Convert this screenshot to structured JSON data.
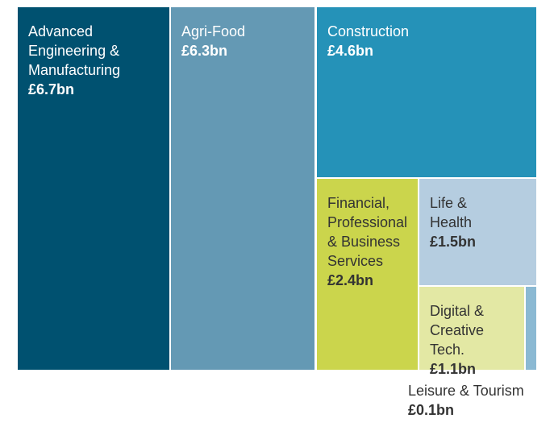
{
  "chart_data": {
    "type": "treemap",
    "title": "",
    "units": "£bn",
    "items": [
      {
        "label": "Advanced\nEngineering &\nManufacturing",
        "value": 6.7,
        "value_text": "£6.7bn",
        "color": "#005170",
        "text_color": "#ffffff"
      },
      {
        "label": "Agri-Food",
        "value": 6.3,
        "value_text": "£6.3bn",
        "color": "#6499b4",
        "text_color": "#ffffff"
      },
      {
        "label": "Construction",
        "value": 4.6,
        "value_text": "£4.6bn",
        "color": "#2592b8",
        "text_color": "#ffffff"
      },
      {
        "label": "Financial,\nProfessional\n& Business\nServices",
        "value": 2.4,
        "value_text": "£2.4bn",
        "color": "#cbd54c",
        "text_color": "#333333"
      },
      {
        "label": "Life &\nHealth",
        "value": 1.5,
        "value_text": "£1.5bn",
        "color": "#b5cde0",
        "text_color": "#333333"
      },
      {
        "label": "Digital &\nCreative\nTech.",
        "value": 1.1,
        "value_text": "£1.1bn",
        "color": "#e3e8a4",
        "text_color": "#333333"
      },
      {
        "label": "Leisure & Tourism",
        "value": 0.1,
        "value_text": "£0.1bn",
        "color": "#8bb9d3",
        "text_color": "#333333",
        "label_outside": true
      }
    ]
  }
}
